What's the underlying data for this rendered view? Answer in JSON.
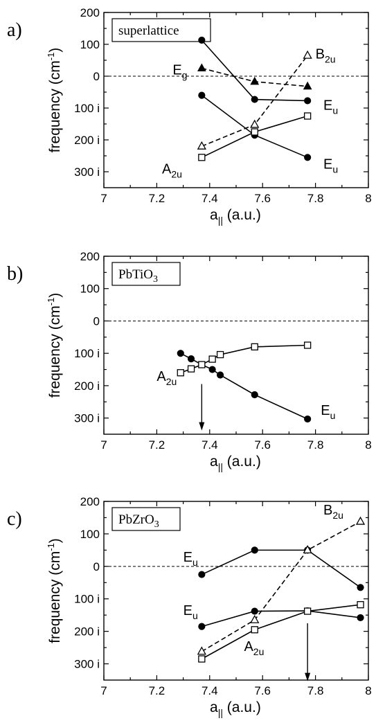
{
  "chart_data": [
    {
      "type": "line",
      "panel_label": "a)",
      "box_label": "superlattice",
      "xlabel": "a",
      "xlabel_sub": "||",
      "xlabel_unit": "(a.u.)",
      "ylabel": "frequency (cm",
      "ylabel_sup": "-1",
      "xlim": [
        7,
        8
      ],
      "ylim": [
        -350,
        200
      ],
      "x_ticks": [
        "7",
        "7.2",
        "7.4",
        "7.6",
        "7.8",
        "8"
      ],
      "y_ticks": [
        {
          "v": 200,
          "label": "200"
        },
        {
          "v": 100,
          "label": "100"
        },
        {
          "v": 0,
          "label": "0"
        },
        {
          "v": -100,
          "label": "100 i"
        },
        {
          "v": -200,
          "label": "200 i"
        },
        {
          "v": -300,
          "label": "300 i"
        }
      ],
      "series": [
        {
          "marker": "filled-circle",
          "dash": false,
          "x": [
            7.37,
            7.57,
            7.77
          ],
          "y": [
            113,
            -73,
            -77
          ]
        },
        {
          "marker": "filled-circle",
          "dash": false,
          "x": [
            7.37,
            7.57,
            7.77
          ],
          "y": [
            -60,
            -185,
            -255
          ]
        },
        {
          "marker": "open-square",
          "dash": false,
          "x": [
            7.37,
            7.57,
            7.77
          ],
          "y": [
            -255,
            -175,
            -125
          ]
        },
        {
          "marker": "filled-triangle",
          "dash": true,
          "x": [
            7.37,
            7.57,
            7.77
          ],
          "y": [
            25,
            -17,
            -32
          ]
        },
        {
          "marker": "open-triangle",
          "dash": true,
          "x": [
            7.37,
            7.57,
            7.77
          ],
          "y": [
            -220,
            -152,
            65
          ]
        }
      ],
      "annotations": [
        {
          "text": "E",
          "sub": "g",
          "x": 7.26,
          "y": 5
        },
        {
          "text": "B",
          "sub": "2u",
          "x": 7.8,
          "y": 55
        },
        {
          "text": "E",
          "sub": "u",
          "x": 7.83,
          "y": -105
        },
        {
          "text": "E",
          "sub": "u",
          "x": 7.83,
          "y": -290
        },
        {
          "text": "A",
          "sub": "2u",
          "x": 7.22,
          "y": -305
        }
      ],
      "arrows": []
    },
    {
      "type": "line",
      "panel_label": "b)",
      "box_label": "PbTiO",
      "box_label_sub": "3",
      "xlabel": "a",
      "xlabel_sub": "||",
      "xlabel_unit": "(a.u.)",
      "ylabel": "frequency (cm",
      "ylabel_sup": "-1",
      "xlim": [
        7,
        8
      ],
      "ylim": [
        -350,
        200
      ],
      "x_ticks": [
        "7",
        "7.2",
        "7.4",
        "7.6",
        "7.8",
        "8"
      ],
      "y_ticks": [
        {
          "v": 200,
          "label": "200"
        },
        {
          "v": 100,
          "label": "100"
        },
        {
          "v": 0,
          "label": "0"
        },
        {
          "v": -100,
          "label": "100 i"
        },
        {
          "v": -200,
          "label": "200 i"
        },
        {
          "v": -300,
          "label": "300 i"
        }
      ],
      "series": [
        {
          "marker": "filled-circle",
          "dash": false,
          "x": [
            7.29,
            7.33,
            7.37,
            7.41,
            7.44,
            7.57,
            7.77
          ],
          "y": [
            -100,
            -117,
            -135,
            -150,
            -167,
            -228,
            -303
          ]
        },
        {
          "marker": "open-square",
          "dash": false,
          "x": [
            7.29,
            7.33,
            7.37,
            7.41,
            7.44,
            7.57,
            7.77
          ],
          "y": [
            -160,
            -148,
            -135,
            -118,
            -104,
            -80,
            -75
          ]
        }
      ],
      "annotations": [
        {
          "text": "A",
          "sub": "2u",
          "x": 7.2,
          "y": -185
        },
        {
          "text": "E",
          "sub": "u",
          "x": 7.82,
          "y": -290
        }
      ],
      "arrows": [
        {
          "x": 7.37,
          "y_from": -195,
          "y_to": -330
        }
      ]
    },
    {
      "type": "line",
      "panel_label": "c)",
      "box_label": "PbZrO",
      "box_label_sub": "3",
      "xlabel": "a",
      "xlabel_sub": "||",
      "xlabel_unit": "(a.u.)",
      "ylabel": "frequency (cm",
      "ylabel_sup": "-1",
      "xlim": [
        7,
        8
      ],
      "ylim": [
        -350,
        200
      ],
      "x_ticks": [
        "7",
        "7.2",
        "7.4",
        "7.6",
        "7.8",
        "8"
      ],
      "y_ticks": [
        {
          "v": 200,
          "label": "200"
        },
        {
          "v": 100,
          "label": "100"
        },
        {
          "v": 0,
          "label": "0"
        },
        {
          "v": -100,
          "label": "100 i"
        },
        {
          "v": -200,
          "label": "200 i"
        },
        {
          "v": -300,
          "label": "300 i"
        }
      ],
      "series": [
        {
          "marker": "filled-circle",
          "dash": false,
          "x": [
            7.37,
            7.57,
            7.77,
            7.97
          ],
          "y": [
            -25,
            50,
            50,
            -65
          ]
        },
        {
          "marker": "filled-circle",
          "dash": false,
          "x": [
            7.37,
            7.57,
            7.77,
            7.97
          ],
          "y": [
            -185,
            -138,
            -137,
            -158
          ]
        },
        {
          "marker": "open-square",
          "dash": false,
          "x": [
            7.37,
            7.57,
            7.77,
            7.97
          ],
          "y": [
            -285,
            -195,
            -138,
            -118
          ]
        },
        {
          "marker": "open-triangle",
          "dash": true,
          "x": [
            7.37,
            7.57,
            7.77,
            7.97
          ],
          "y": [
            -262,
            -165,
            50,
            138
          ]
        }
      ],
      "annotations": [
        {
          "text": "E",
          "sub": "u",
          "x": 7.3,
          "y": 15
        },
        {
          "text": "E",
          "sub": "u",
          "x": 7.3,
          "y": -150
        },
        {
          "text": "A",
          "sub": "2u",
          "x": 7.53,
          "y": -260
        },
        {
          "text": "B",
          "sub": "2u",
          "x": 7.83,
          "y": 160
        }
      ],
      "arrows": [
        {
          "x": 7.77,
          "y_from": -175,
          "y_to": -345
        }
      ]
    }
  ]
}
